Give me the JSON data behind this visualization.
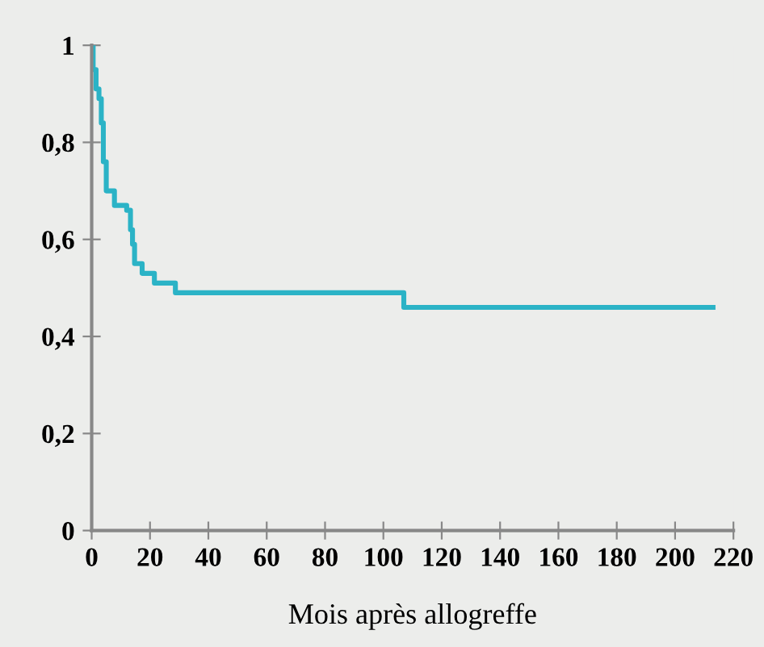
{
  "chart_data": {
    "type": "step",
    "xlabel": "Mois après allogreffe",
    "x": [
      0,
      0.5,
      1.5,
      2.5,
      3.3,
      4,
      5,
      7.8,
      12,
      13.3,
      14,
      14.7,
      17.3,
      21.5,
      28.7,
      107,
      213
    ],
    "series": [
      {
        "color": "#2bb3c6",
        "values": [
          1,
          0.95,
          0.91,
          0.89,
          0.84,
          0.76,
          0.7,
          0.67,
          0.66,
          0.62,
          0.59,
          0.55,
          0.53,
          0.51,
          0.49,
          0.46,
          0.46
        ]
      }
    ],
    "xlim": [
      0,
      220
    ],
    "xticks": [
      0,
      20,
      40,
      60,
      80,
      100,
      120,
      140,
      160,
      180,
      200,
      220
    ],
    "ylim": [
      0,
      1
    ],
    "yticks": [
      {
        "value": 0,
        "label": "0"
      },
      {
        "value": 0.2,
        "label": "0,2"
      },
      {
        "value": 0.4,
        "label": "0,4"
      },
      {
        "value": 0.6,
        "label": "0,6"
      },
      {
        "value": 0.8,
        "label": "0,8"
      },
      {
        "value": 1,
        "label": "1"
      }
    ],
    "grid": false,
    "legend": false,
    "marker": "none",
    "line_style": "solid"
  }
}
